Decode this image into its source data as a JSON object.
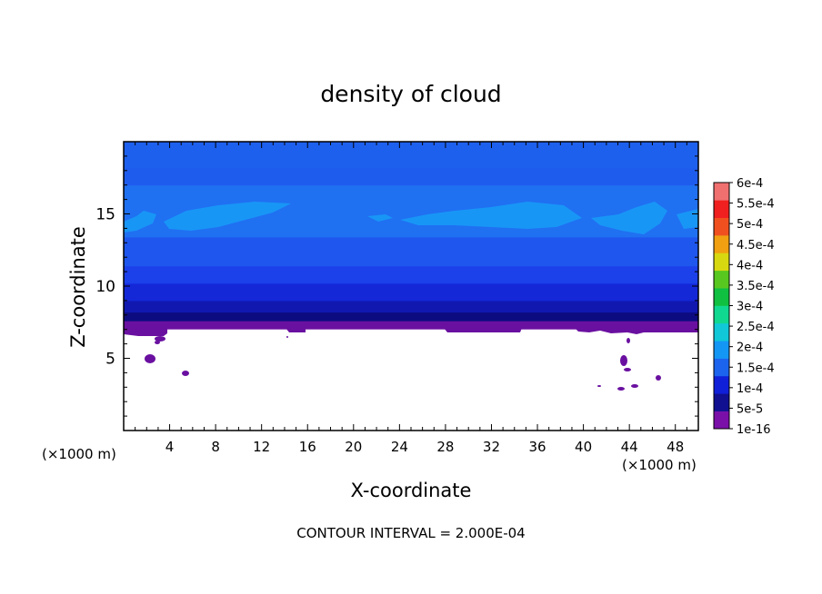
{
  "chart_data": {
    "type": "heatmap",
    "title": "density of cloud",
    "xlabel": "X-coordinate",
    "ylabel": "Z-coordinate",
    "x_unit": "(×1000 m)",
    "z_unit": "(×1000 m)",
    "xlim": [
      0,
      50
    ],
    "ylim": [
      0,
      20
    ],
    "x_ticks": [
      4,
      8,
      12,
      16,
      20,
      24,
      28,
      32,
      36,
      40,
      44,
      48
    ],
    "x_tick_labels": [
      "4",
      "8",
      "12",
      "16",
      "20",
      "24",
      "28",
      "32",
      "36",
      "40",
      "44",
      "48"
    ],
    "y_ticks": [
      5,
      10,
      15
    ],
    "y_tick_labels": [
      "5",
      "10",
      "15"
    ],
    "footer": "CONTOUR INTERVAL = 2.000E-04",
    "colorbar": {
      "labels": [
        "1e-16",
        "5e-5",
        "1e-4",
        "1.5e-4",
        "2e-4",
        "2.5e-4",
        "3e-4",
        "3.5e-4",
        "4e-4",
        "4.5e-4",
        "5e-4",
        "5.5e-4",
        "6e-4"
      ],
      "colors": [
        "#7a10a8",
        "#101090",
        "#1020d8",
        "#1c64ee",
        "#1496f4",
        "#10c8d8",
        "#10d890",
        "#10c040",
        "#58c820",
        "#d8d810",
        "#f0a010",
        "#f05020",
        "#f02020",
        "#f07070"
      ]
    },
    "layers": [
      {
        "z_range": [
          7.0,
          7.8
        ],
        "color": "#6a10a0"
      },
      {
        "z_range": [
          7.6,
          8.4
        ],
        "color": "#0c0c80"
      },
      {
        "z_range": [
          8.2,
          9.2
        ],
        "color": "#1018b0"
      },
      {
        "z_range": [
          9.0,
          10.4
        ],
        "color": "#1428d8"
      },
      {
        "z_range": [
          10.2,
          11.6
        ],
        "color": "#1c40ea"
      },
      {
        "z_range": [
          11.4,
          13.4
        ],
        "color": "#1e56ee"
      },
      {
        "z_range": [
          13.4,
          17.0
        ],
        "color": "#2070f2"
      },
      {
        "z_range": [
          17.0,
          18.2
        ],
        "color": "#1e5cee"
      },
      {
        "z_range": [
          18.2,
          20.0
        ],
        "color": "#1e60ee"
      }
    ],
    "cloud_top_band": {
      "z": 15.0,
      "color": "#1896f6"
    },
    "bottom_patches_z": 7.0
  }
}
